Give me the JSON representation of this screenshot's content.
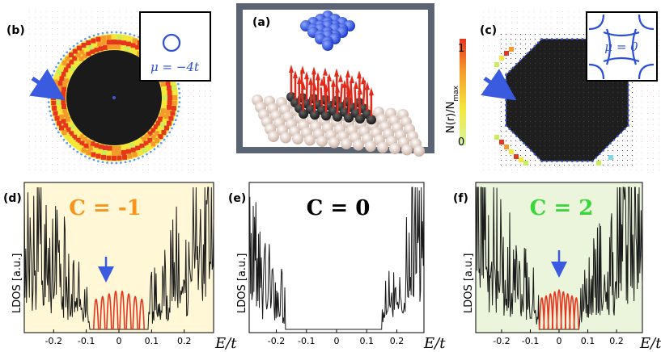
{
  "panels": {
    "a": {
      "label": "(a)"
    },
    "b": {
      "label": "(b)",
      "inset": "μ = −4t"
    },
    "c": {
      "label": "(c)",
      "inset": "μ = 0"
    },
    "d": {
      "label": "(d)",
      "chern": "C = -1",
      "color": "#f7941d",
      "bg": "#fff7d6"
    },
    "e": {
      "label": "(e)",
      "chern": "C = 0",
      "color": "#000000",
      "bg": "#ffffff"
    },
    "f": {
      "label": "(f)",
      "chern": "C = 2",
      "color": "#3ad63a",
      "bg": "#eaf5dc"
    }
  },
  "colorbar": {
    "label": "N(r)/N",
    "label_sub": "max",
    "max": "1",
    "min": "0"
  },
  "axes": {
    "ylabel": "LDOS [a.u.]",
    "xlabel": "E/t",
    "ticks": [
      "-0.2",
      "-0.1",
      "0",
      "0.1",
      "0.2"
    ]
  },
  "colors": {
    "edge_states": "#e8351d",
    "arrow": "#3a5be0",
    "trace": "#1a1a1a"
  },
  "chart_data": [
    {
      "type": "line",
      "panel": "d",
      "title": "C = -1",
      "xlabel": "E/t",
      "ylabel": "LDOS [a.u.]",
      "xlim": [
        -0.29,
        0.29
      ],
      "x_ticks": [
        -0.2,
        -0.1,
        0,
        0.1,
        0.2
      ],
      "edge_peaks_E": [
        -0.07,
        -0.05,
        -0.03,
        -0.01,
        0.01,
        0.03,
        0.05,
        0.07
      ],
      "gap": [
        -0.09,
        0.09
      ]
    },
    {
      "type": "line",
      "panel": "e",
      "title": "C = 0",
      "xlabel": "E/t",
      "ylabel": "LDOS [a.u.]",
      "xlim": [
        -0.29,
        0.29
      ],
      "x_ticks": [
        -0.2,
        -0.1,
        0,
        0.1,
        0.2
      ],
      "gap": [
        -0.17,
        0.15
      ]
    },
    {
      "type": "line",
      "panel": "f",
      "title": "C = 2",
      "xlabel": "E/t",
      "ylabel": "LDOS [a.u.]",
      "xlim": [
        -0.29,
        0.29
      ],
      "x_ticks": [
        -0.2,
        -0.1,
        0,
        0.1,
        0.2
      ],
      "edge_peaks_E": [
        -0.06,
        -0.045,
        -0.03,
        -0.015,
        0.0,
        0.015,
        0.03,
        0.045,
        0.06
      ],
      "gap": [
        -0.07,
        0.07
      ]
    }
  ]
}
